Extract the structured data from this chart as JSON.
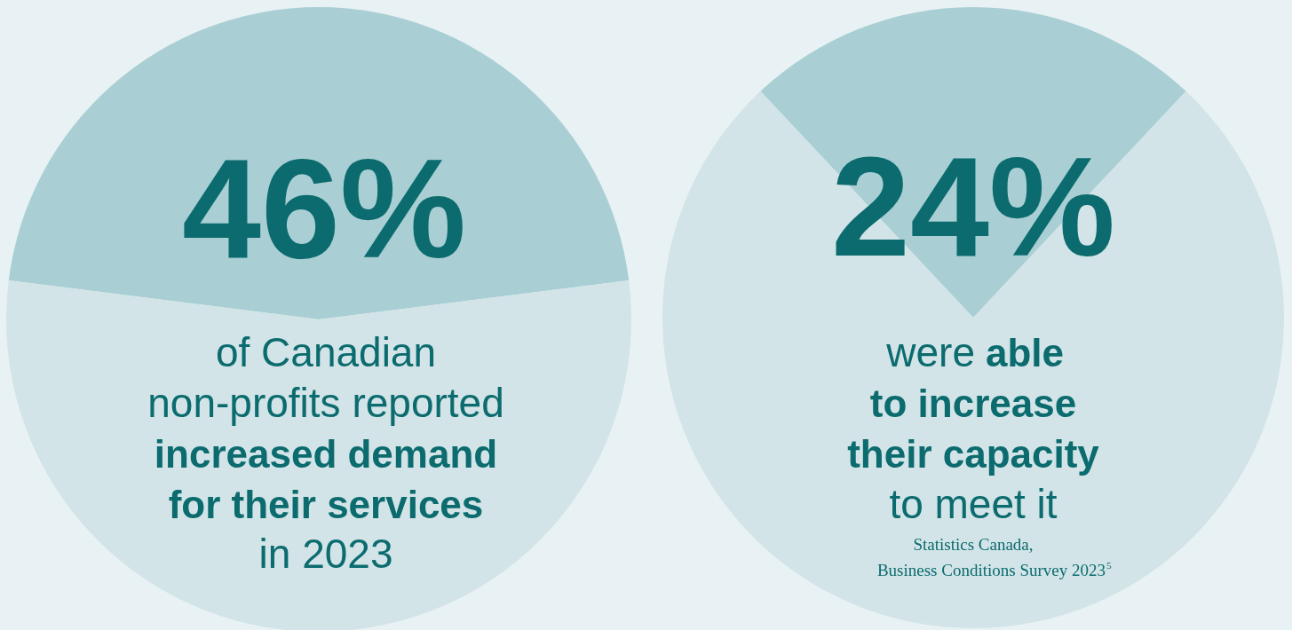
{
  "chart_data": [
    {
      "type": "pie",
      "categories": [
        null,
        null
      ],
      "values": [
        46,
        54
      ],
      "colors": [
        "#a9cfd4",
        "#d2e4e7"
      ],
      "value_labels": [
        "46%",
        null
      ],
      "legend": false,
      "annotations": [
        "of Canadian",
        "non-profits reported",
        "increased demand",
        "for their services",
        "in 2023"
      ]
    },
    {
      "type": "pie",
      "categories": [
        null,
        null
      ],
      "values": [
        24,
        76
      ],
      "colors": [
        "#a9cfd4",
        "#d2e4e7"
      ],
      "value_labels": [
        "24%",
        null
      ],
      "legend": false,
      "annotations": [
        "were",
        "able",
        "to increase",
        "their capacity",
        "to meet it",
        "Statistics Canada,",
        "Business Conditions Survey 2023$^{5}$"
      ]
    }
  ]
}
